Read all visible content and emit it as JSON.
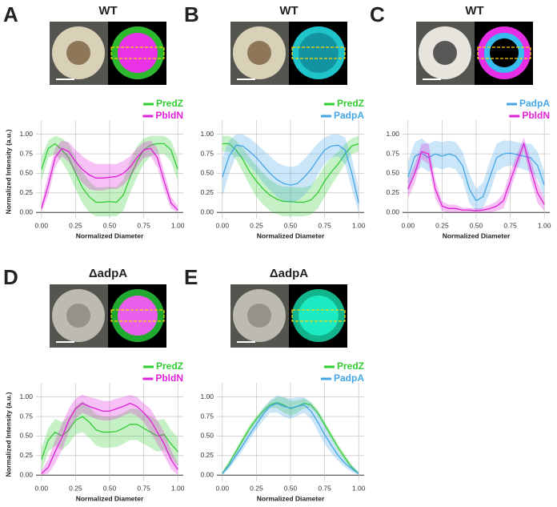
{
  "chart_data": [
    {
      "type": "line",
      "panel": "A",
      "title": "WT",
      "y_label": "Normalized Intensity (a.u.)",
      "x_label": "Normalized Diameter",
      "x": [
        0,
        0.05,
        0.1,
        0.15,
        0.2,
        0.25,
        0.3,
        0.35,
        0.4,
        0.45,
        0.5,
        0.55,
        0.6,
        0.65,
        0.7,
        0.75,
        0.8,
        0.85,
        0.9,
        0.95,
        1
      ],
      "xlim": [
        -0.04,
        1.04
      ],
      "ylim": [
        -0.08,
        1.12
      ],
      "xticks": [
        {
          "value": 0,
          "label": "0.00"
        },
        {
          "value": 0.25,
          "label": "0.25"
        },
        {
          "value": 0.5,
          "label": "0.50"
        },
        {
          "value": 0.75,
          "label": "0.75"
        },
        {
          "value": 1,
          "label": "1.00"
        }
      ],
      "yticks": [
        {
          "value": 0,
          "label": "0.00"
        },
        {
          "value": 0.25,
          "label": "0.25"
        },
        {
          "value": 0.5,
          "label": "0.50"
        },
        {
          "value": 0.75,
          "label": "0.75"
        },
        {
          "value": 1,
          "label": "1.00"
        }
      ],
      "grid": true,
      "series": [
        {
          "name": "PredZ",
          "color": "#33cc33",
          "values": [
            0.55,
            0.82,
            0.88,
            0.8,
            0.7,
            0.5,
            0.32,
            0.2,
            0.13,
            0.13,
            0.14,
            0.13,
            0.22,
            0.45,
            0.65,
            0.8,
            0.86,
            0.88,
            0.88,
            0.8,
            0.55
          ],
          "lower": [
            0.4,
            0.7,
            0.75,
            0.65,
            0.5,
            0.3,
            0.12,
            0.0,
            -0.05,
            -0.05,
            -0.05,
            -0.05,
            0.02,
            0.25,
            0.45,
            0.62,
            0.72,
            0.75,
            0.75,
            0.65,
            0.4
          ],
          "upper": [
            0.7,
            0.92,
            0.98,
            0.95,
            0.88,
            0.7,
            0.52,
            0.4,
            0.32,
            0.32,
            0.33,
            0.32,
            0.42,
            0.65,
            0.85,
            0.95,
            0.98,
            0.98,
            0.98,
            0.92,
            0.7
          ]
        },
        {
          "name": "PbldN",
          "color": "#e020d8",
          "values": [
            0.05,
            0.35,
            0.7,
            0.82,
            0.78,
            0.65,
            0.55,
            0.48,
            0.44,
            0.44,
            0.45,
            0.46,
            0.5,
            0.58,
            0.7,
            0.8,
            0.82,
            0.7,
            0.4,
            0.12,
            0.03
          ],
          "lower": [
            0.0,
            0.22,
            0.58,
            0.72,
            0.65,
            0.5,
            0.38,
            0.3,
            0.28,
            0.28,
            0.3,
            0.3,
            0.35,
            0.45,
            0.58,
            0.7,
            0.72,
            0.58,
            0.28,
            0.05,
            0.0
          ],
          "upper": [
            0.12,
            0.48,
            0.82,
            0.92,
            0.9,
            0.8,
            0.72,
            0.66,
            0.62,
            0.62,
            0.62,
            0.62,
            0.66,
            0.72,
            0.82,
            0.9,
            0.92,
            0.82,
            0.52,
            0.2,
            0.08
          ]
        }
      ]
    },
    {
      "type": "line",
      "panel": "B",
      "title": "WT",
      "x_label": "Normalized Diameter",
      "x": [
        0,
        0.05,
        0.1,
        0.15,
        0.2,
        0.25,
        0.3,
        0.35,
        0.4,
        0.45,
        0.5,
        0.55,
        0.6,
        0.65,
        0.7,
        0.75,
        0.8,
        0.85,
        0.9,
        0.95,
        1
      ],
      "xlim": [
        -0.04,
        1.04
      ],
      "ylim": [
        -0.08,
        1.12
      ],
      "xticks": [
        {
          "value": 0,
          "label": "0.00"
        },
        {
          "value": 0.25,
          "label": "0.25"
        },
        {
          "value": 0.5,
          "label": "0.50"
        },
        {
          "value": 0.75,
          "label": "0.75"
        },
        {
          "value": 1,
          "label": "1.00"
        }
      ],
      "yticks": [
        {
          "value": 0,
          "label": "0.00"
        },
        {
          "value": 0.25,
          "label": "0.25"
        },
        {
          "value": 0.5,
          "label": "0.50"
        },
        {
          "value": 0.75,
          "label": "0.75"
        },
        {
          "value": 1,
          "label": "1.00"
        }
      ],
      "grid": true,
      "series": [
        {
          "name": "PredZ",
          "color": "#33cc33",
          "values": [
            0.88,
            0.88,
            0.8,
            0.68,
            0.52,
            0.4,
            0.3,
            0.22,
            0.17,
            0.14,
            0.14,
            0.13,
            0.13,
            0.16,
            0.25,
            0.4,
            0.52,
            0.62,
            0.75,
            0.85,
            0.88
          ],
          "lower": [
            0.78,
            0.78,
            0.68,
            0.52,
            0.35,
            0.2,
            0.1,
            0.02,
            -0.02,
            -0.05,
            -0.05,
            -0.05,
            -0.05,
            -0.03,
            0.05,
            0.2,
            0.35,
            0.48,
            0.62,
            0.75,
            0.78
          ],
          "upper": [
            0.98,
            0.98,
            0.92,
            0.82,
            0.7,
            0.6,
            0.5,
            0.42,
            0.36,
            0.33,
            0.33,
            0.32,
            0.32,
            0.35,
            0.45,
            0.6,
            0.7,
            0.78,
            0.88,
            0.95,
            0.98
          ]
        },
        {
          "name": "PadpA",
          "color": "#44a6e6",
          "values": [
            0.45,
            0.72,
            0.86,
            0.85,
            0.78,
            0.7,
            0.6,
            0.5,
            0.42,
            0.37,
            0.35,
            0.37,
            0.45,
            0.55,
            0.68,
            0.8,
            0.85,
            0.86,
            0.8,
            0.5,
            0.12
          ],
          "lower": [
            0.2,
            0.5,
            0.72,
            0.7,
            0.6,
            0.5,
            0.38,
            0.28,
            0.2,
            0.15,
            0.12,
            0.15,
            0.22,
            0.32,
            0.48,
            0.62,
            0.7,
            0.72,
            0.62,
            0.3,
            0.0
          ],
          "upper": [
            0.7,
            0.92,
            1.0,
            1.0,
            0.95,
            0.88,
            0.8,
            0.72,
            0.64,
            0.6,
            0.58,
            0.6,
            0.68,
            0.78,
            0.88,
            0.96,
            1.0,
            1.0,
            0.96,
            0.7,
            0.3
          ]
        }
      ]
    },
    {
      "type": "line",
      "panel": "C",
      "title": "WT",
      "x_label": "Normalized Diameter",
      "x": [
        0,
        0.05,
        0.1,
        0.15,
        0.2,
        0.25,
        0.3,
        0.35,
        0.4,
        0.45,
        0.5,
        0.55,
        0.6,
        0.65,
        0.7,
        0.75,
        0.8,
        0.85,
        0.9,
        0.95,
        1
      ],
      "xlim": [
        -0.04,
        1.04
      ],
      "ylim": [
        -0.08,
        1.12
      ],
      "xticks": [
        {
          "value": 0,
          "label": "0.00"
        },
        {
          "value": 0.25,
          "label": "0.25"
        },
        {
          "value": 0.5,
          "label": "0.50"
        },
        {
          "value": 0.75,
          "label": "0.75"
        },
        {
          "value": 1,
          "label": "1.00"
        }
      ],
      "yticks": [
        {
          "value": 0,
          "label": "0.00"
        },
        {
          "value": 0.25,
          "label": "0.25"
        },
        {
          "value": 0.5,
          "label": "0.50"
        },
        {
          "value": 0.75,
          "label": "0.75"
        },
        {
          "value": 1,
          "label": "1.00"
        }
      ],
      "grid": true,
      "series": [
        {
          "name": "PadpA",
          "color": "#44a6e6",
          "values": [
            0.45,
            0.72,
            0.76,
            0.7,
            0.75,
            0.72,
            0.75,
            0.72,
            0.6,
            0.3,
            0.15,
            0.2,
            0.45,
            0.7,
            0.75,
            0.76,
            0.74,
            0.72,
            0.7,
            0.6,
            0.35
          ],
          "lower": [
            0.25,
            0.52,
            0.58,
            0.52,
            0.58,
            0.55,
            0.58,
            0.55,
            0.42,
            0.12,
            0.02,
            0.05,
            0.25,
            0.52,
            0.58,
            0.6,
            0.58,
            0.55,
            0.52,
            0.42,
            0.18
          ],
          "upper": [
            0.65,
            0.9,
            0.95,
            0.88,
            0.92,
            0.9,
            0.92,
            0.9,
            0.78,
            0.5,
            0.3,
            0.38,
            0.65,
            0.88,
            0.92,
            0.92,
            0.9,
            0.88,
            0.88,
            0.78,
            0.52
          ]
        },
        {
          "name": "PbldN",
          "color": "#e020d8",
          "values": [
            0.3,
            0.5,
            0.78,
            0.75,
            0.3,
            0.08,
            0.05,
            0.05,
            0.03,
            0.03,
            0.02,
            0.03,
            0.05,
            0.08,
            0.15,
            0.4,
            0.65,
            0.88,
            0.55,
            0.25,
            0.1
          ],
          "lower": [
            0.18,
            0.38,
            0.68,
            0.62,
            0.18,
            0.02,
            0.0,
            0.0,
            0.0,
            0.0,
            0.0,
            0.0,
            0.0,
            0.02,
            0.05,
            0.28,
            0.55,
            0.8,
            0.42,
            0.12,
            0.02
          ],
          "upper": [
            0.42,
            0.62,
            0.88,
            0.88,
            0.42,
            0.14,
            0.1,
            0.1,
            0.06,
            0.06,
            0.05,
            0.06,
            0.1,
            0.14,
            0.25,
            0.52,
            0.75,
            0.96,
            0.68,
            0.38,
            0.18
          ]
        }
      ]
    },
    {
      "type": "line",
      "panel": "D",
      "title": "ΔadpA",
      "y_label": "Normalized Intensity (a.u.)",
      "x_label": "Normalized Diameter",
      "x": [
        0,
        0.05,
        0.1,
        0.15,
        0.2,
        0.25,
        0.3,
        0.35,
        0.4,
        0.45,
        0.5,
        0.55,
        0.6,
        0.65,
        0.7,
        0.75,
        0.8,
        0.85,
        0.9,
        0.95,
        1
      ],
      "xlim": [
        -0.04,
        1.04
      ],
      "ylim": [
        -0.08,
        1.12
      ],
      "xticks": [
        {
          "value": 0,
          "label": "0.00"
        },
        {
          "value": 0.25,
          "label": "0.25"
        },
        {
          "value": 0.5,
          "label": "0.50"
        },
        {
          "value": 0.75,
          "label": "0.75"
        },
        {
          "value": 1,
          "label": "1.00"
        }
      ],
      "yticks": [
        {
          "value": 0,
          "label": "0.00"
        },
        {
          "value": 0.25,
          "label": "0.25"
        },
        {
          "value": 0.5,
          "label": "0.50"
        },
        {
          "value": 0.75,
          "label": "0.75"
        },
        {
          "value": 1,
          "label": "1.00"
        }
      ],
      "grid": true,
      "series": [
        {
          "name": "PredZ",
          "color": "#33cc33",
          "values": [
            0.2,
            0.45,
            0.55,
            0.5,
            0.58,
            0.7,
            0.75,
            0.68,
            0.58,
            0.55,
            0.55,
            0.56,
            0.6,
            0.65,
            0.65,
            0.6,
            0.55,
            0.5,
            0.52,
            0.4,
            0.3
          ],
          "lower": [
            0.05,
            0.3,
            0.38,
            0.32,
            0.4,
            0.52,
            0.55,
            0.48,
            0.38,
            0.35,
            0.35,
            0.36,
            0.4,
            0.45,
            0.45,
            0.4,
            0.35,
            0.3,
            0.32,
            0.22,
            0.12
          ],
          "upper": [
            0.35,
            0.6,
            0.72,
            0.68,
            0.75,
            0.88,
            0.95,
            0.88,
            0.78,
            0.75,
            0.75,
            0.76,
            0.8,
            0.85,
            0.85,
            0.8,
            0.75,
            0.7,
            0.72,
            0.58,
            0.48
          ]
        },
        {
          "name": "PbldN",
          "color": "#e020d8",
          "values": [
            0.02,
            0.1,
            0.3,
            0.48,
            0.7,
            0.85,
            0.92,
            0.88,
            0.85,
            0.82,
            0.82,
            0.85,
            0.88,
            0.92,
            0.88,
            0.8,
            0.7,
            0.55,
            0.4,
            0.2,
            0.07
          ],
          "lower": [
            0.0,
            0.02,
            0.15,
            0.32,
            0.55,
            0.72,
            0.8,
            0.76,
            0.72,
            0.7,
            0.7,
            0.72,
            0.76,
            0.8,
            0.76,
            0.68,
            0.55,
            0.4,
            0.25,
            0.08,
            0.0
          ],
          "upper": [
            0.06,
            0.2,
            0.45,
            0.65,
            0.85,
            0.98,
            1.03,
            1.0,
            0.98,
            0.95,
            0.95,
            0.98,
            1.0,
            1.03,
            1.0,
            0.92,
            0.85,
            0.7,
            0.55,
            0.32,
            0.15
          ]
        }
      ]
    },
    {
      "type": "line",
      "panel": "E",
      "title": "ΔadpA",
      "x_label": "Normalized Diameter",
      "x": [
        0,
        0.05,
        0.1,
        0.15,
        0.2,
        0.25,
        0.3,
        0.35,
        0.4,
        0.45,
        0.5,
        0.55,
        0.6,
        0.65,
        0.7,
        0.75,
        0.8,
        0.85,
        0.9,
        0.95,
        1
      ],
      "xlim": [
        -0.04,
        1.04
      ],
      "ylim": [
        -0.08,
        1.12
      ],
      "xticks": [
        {
          "value": 0,
          "label": "0.00"
        },
        {
          "value": 0.25,
          "label": "0.25"
        },
        {
          "value": 0.5,
          "label": "0.50"
        },
        {
          "value": 0.75,
          "label": "0.75"
        },
        {
          "value": 1,
          "label": "1.00"
        }
      ],
      "yticks": [
        {
          "value": 0,
          "label": "0.00"
        },
        {
          "value": 0.25,
          "label": "0.25"
        },
        {
          "value": 0.5,
          "label": "0.50"
        },
        {
          "value": 0.75,
          "label": "0.75"
        },
        {
          "value": 1,
          "label": "1.00"
        }
      ],
      "grid": true,
      "series": [
        {
          "name": "PredZ",
          "color": "#33cc33",
          "values": [
            0.02,
            0.15,
            0.3,
            0.45,
            0.6,
            0.72,
            0.82,
            0.9,
            0.93,
            0.9,
            0.85,
            0.88,
            0.92,
            0.9,
            0.8,
            0.65,
            0.5,
            0.35,
            0.22,
            0.1,
            0.02
          ],
          "lower": [
            0.0,
            0.12,
            0.26,
            0.41,
            0.56,
            0.68,
            0.78,
            0.86,
            0.86,
            0.8,
            0.76,
            0.8,
            0.86,
            0.86,
            0.76,
            0.61,
            0.46,
            0.31,
            0.18,
            0.07,
            0.0
          ],
          "upper": [
            0.04,
            0.18,
            0.34,
            0.49,
            0.64,
            0.76,
            0.86,
            0.94,
            1.0,
            1.0,
            0.95,
            0.96,
            0.98,
            0.94,
            0.84,
            0.69,
            0.54,
            0.39,
            0.26,
            0.13,
            0.04
          ]
        },
        {
          "name": "PadpA",
          "color": "#44a6e6",
          "values": [
            0.02,
            0.12,
            0.25,
            0.38,
            0.52,
            0.65,
            0.78,
            0.88,
            0.92,
            0.88,
            0.86,
            0.88,
            0.9,
            0.82,
            0.68,
            0.52,
            0.38,
            0.25,
            0.15,
            0.08,
            0.02
          ],
          "lower": [
            0.0,
            0.08,
            0.2,
            0.32,
            0.46,
            0.58,
            0.7,
            0.8,
            0.8,
            0.75,
            0.72,
            0.76,
            0.8,
            0.72,
            0.56,
            0.4,
            0.28,
            0.18,
            0.1,
            0.04,
            0.0
          ],
          "upper": [
            0.04,
            0.16,
            0.3,
            0.44,
            0.58,
            0.72,
            0.86,
            0.96,
            1.02,
            1.0,
            0.98,
            1.0,
            1.0,
            0.92,
            0.8,
            0.64,
            0.48,
            0.32,
            0.2,
            0.12,
            0.04
          ]
        }
      ]
    }
  ]
}
